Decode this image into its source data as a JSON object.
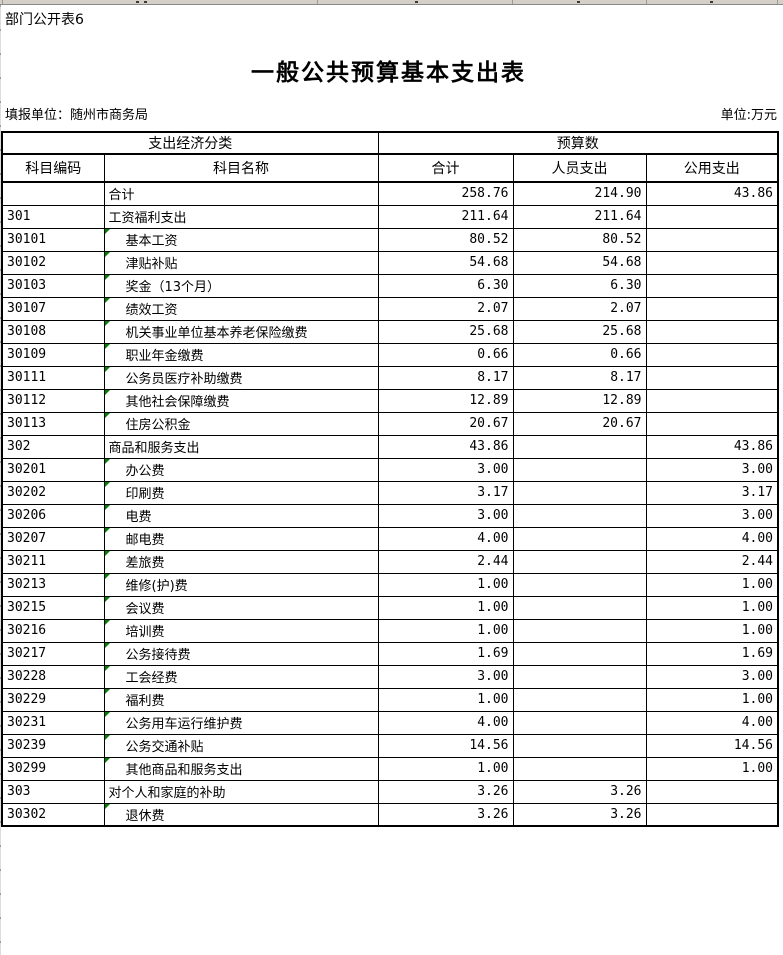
{
  "page": {
    "doc_label": "部门公开表6",
    "title": "一般公共预算基本支出表",
    "filing_unit": "填报单位：随州市商务局",
    "unit_note": "单位:万元"
  },
  "colors": {
    "error_indicator": "#008000",
    "table_border": "#000000",
    "column_strip_bg": "#d4d0c8"
  },
  "table": {
    "header_row1": {
      "classification": "支出经济分类",
      "budget": "预算数"
    },
    "header_row2": {
      "code": "科目编码",
      "name": "科目名称",
      "total": "合计",
      "personnel": "人员支出",
      "public": "公用支出"
    },
    "rows": [
      {
        "code": "",
        "name": "合计",
        "total": "258.76",
        "personnel": "214.90",
        "public": "",
        "indent": false
      },
      {
        "code": "301",
        "name": "工资福利支出",
        "total": "211.64",
        "personnel": "211.64",
        "public": "",
        "indent": false
      },
      {
        "code": "30101",
        "name": "基本工资",
        "total": "80.52",
        "personnel": "80.52",
        "public": "",
        "indent": true
      },
      {
        "code": "30102",
        "name": "津贴补贴",
        "total": "54.68",
        "personnel": "54.68",
        "public": "",
        "indent": true
      },
      {
        "code": "30103",
        "name": "奖金（13个月）",
        "total": "6.30",
        "personnel": "6.30",
        "public": "",
        "indent": true
      },
      {
        "code": "30107",
        "name": "绩效工资",
        "total": "2.07",
        "personnel": "2.07",
        "public": "",
        "indent": true
      },
      {
        "code": "30108",
        "name": "机关事业单位基本养老保险缴费",
        "total": "25.68",
        "personnel": "25.68",
        "public": "",
        "indent": true
      },
      {
        "code": "30109",
        "name": "职业年金缴费",
        "total": "0.66",
        "personnel": "0.66",
        "public": "",
        "indent": true
      },
      {
        "code": "30111",
        "name": "公务员医疗补助缴费",
        "total": "8.17",
        "personnel": "8.17",
        "public": "",
        "indent": true
      },
      {
        "code": "30112",
        "name": "其他社会保障缴费",
        "total": "12.89",
        "personnel": "12.89",
        "public": "",
        "indent": true
      },
      {
        "code": "30113",
        "name": "住房公积金",
        "total": "20.67",
        "personnel": "20.67",
        "public": "",
        "indent": true
      },
      {
        "code": "302",
        "name": "商品和服务支出",
        "total": "43.86",
        "personnel": "",
        "public": "43.86",
        "indent": false
      },
      {
        "code": "30201",
        "name": "办公费",
        "total": "3.00",
        "personnel": "",
        "public": "3.00",
        "indent": true
      },
      {
        "code": "30202",
        "name": "印刷费",
        "total": "3.17",
        "personnel": "",
        "public": "3.17",
        "indent": true
      },
      {
        "code": "30206",
        "name": "电费",
        "total": "3.00",
        "personnel": "",
        "public": "3.00",
        "indent": true
      },
      {
        "code": "30207",
        "name": "邮电费",
        "total": "4.00",
        "personnel": "",
        "public": "4.00",
        "indent": true
      },
      {
        "code": "30211",
        "name": "差旅费",
        "total": "2.44",
        "personnel": "",
        "public": "2.44",
        "indent": true
      },
      {
        "code": "30213",
        "name": "维修(护)费",
        "total": "1.00",
        "personnel": "",
        "public": "1.00",
        "indent": true
      },
      {
        "code": "30215",
        "name": "会议费",
        "total": "1.00",
        "personnel": "",
        "public": "1.00",
        "indent": true
      },
      {
        "code": "30216",
        "name": "培训费",
        "total": "1.00",
        "personnel": "",
        "public": "1.00",
        "indent": true
      },
      {
        "code": "30217",
        "name": "公务接待费",
        "total": "1.69",
        "personnel": "",
        "public": "1.69",
        "indent": true
      },
      {
        "code": "30228",
        "name": "工会经费",
        "total": "3.00",
        "personnel": "",
        "public": "3.00",
        "indent": true
      },
      {
        "code": "30229",
        "name": "福利费",
        "total": "1.00",
        "personnel": "",
        "public": "1.00",
        "indent": true
      },
      {
        "code": "30231",
        "name": "公务用车运行维护费",
        "total": "4.00",
        "personnel": "",
        "public": "4.00",
        "indent": true
      },
      {
        "code": "30239",
        "name": "公务交通补贴",
        "total": "14.56",
        "personnel": "",
        "public": "14.56",
        "indent": true
      },
      {
        "code": "30299",
        "name": "其他商品和服务支出",
        "total": "1.00",
        "personnel": "",
        "public": "1.00",
        "indent": true
      },
      {
        "code": "303",
        "name": "对个人和家庭的补助",
        "total": "3.26",
        "personnel": "3.26",
        "public": "",
        "indent": false
      },
      {
        "code": "30302",
        "name": "退休费",
        "total": "3.26",
        "personnel": "3.26",
        "public": "",
        "indent": true
      }
    ],
    "summary_public_value": "43.86"
  }
}
